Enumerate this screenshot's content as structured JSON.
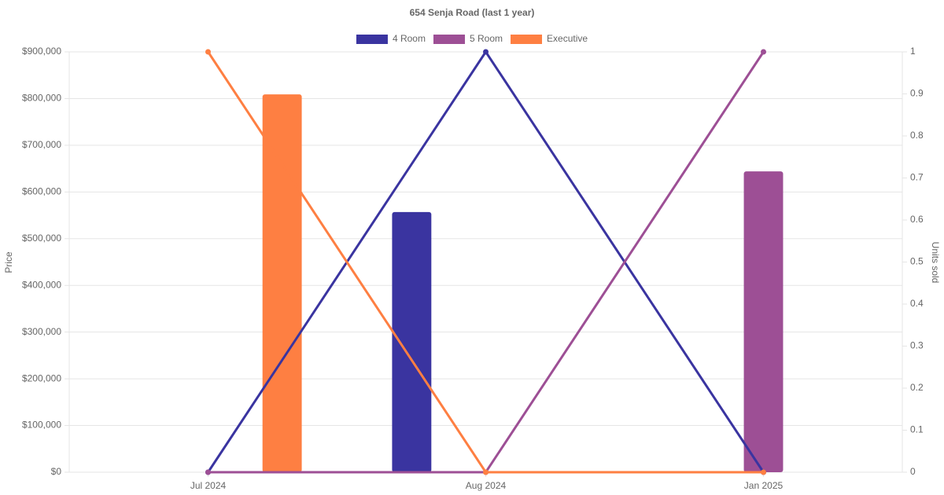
{
  "chart_data": {
    "type": "bar-line",
    "title": "654 Senja Road (last 1 year)",
    "y_label": "Price",
    "y2_label": "Units sold",
    "categories": [
      "Jul 2024",
      "Aug 2024",
      "Jan 2025"
    ],
    "series": [
      {
        "name": "4 Room",
        "color": "#3a34a0",
        "values": [
          null,
          557000,
          null
        ],
        "line_values": [
          0,
          1,
          0
        ],
        "line_axis": "y2"
      },
      {
        "name": "5 Room",
        "color": "#9d4f95",
        "values": [
          null,
          null,
          644000
        ],
        "line_values": [
          0,
          0,
          1
        ],
        "line_axis": "y2"
      },
      {
        "name": "Executive",
        "color": "#fe7f42",
        "values": [
          809000,
          null,
          null
        ],
        "line_values": [
          1,
          0,
          0
        ],
        "line_axis": "y2"
      }
    ],
    "ylim": [
      0,
      900000
    ],
    "yticks": [
      {
        "value": 0,
        "label": "$0"
      },
      {
        "value": 100000,
        "label": "$100,000"
      },
      {
        "value": 200000,
        "label": "$200,000"
      },
      {
        "value": 300000,
        "label": "$300,000"
      },
      {
        "value": 400000,
        "label": "$400,000"
      },
      {
        "value": 500000,
        "label": "$500,000"
      },
      {
        "value": 600000,
        "label": "$600,000"
      },
      {
        "value": 700000,
        "label": "$700,000"
      },
      {
        "value": 800000,
        "label": "$800,000"
      },
      {
        "value": 900000,
        "label": "$900,000"
      }
    ],
    "y2lim": [
      0,
      1
    ],
    "y2ticks": [
      0,
      0.1,
      0.2,
      0.3,
      0.4,
      0.5,
      0.6,
      0.7,
      0.8,
      0.9,
      1
    ],
    "grid": true,
    "legend": "top"
  }
}
